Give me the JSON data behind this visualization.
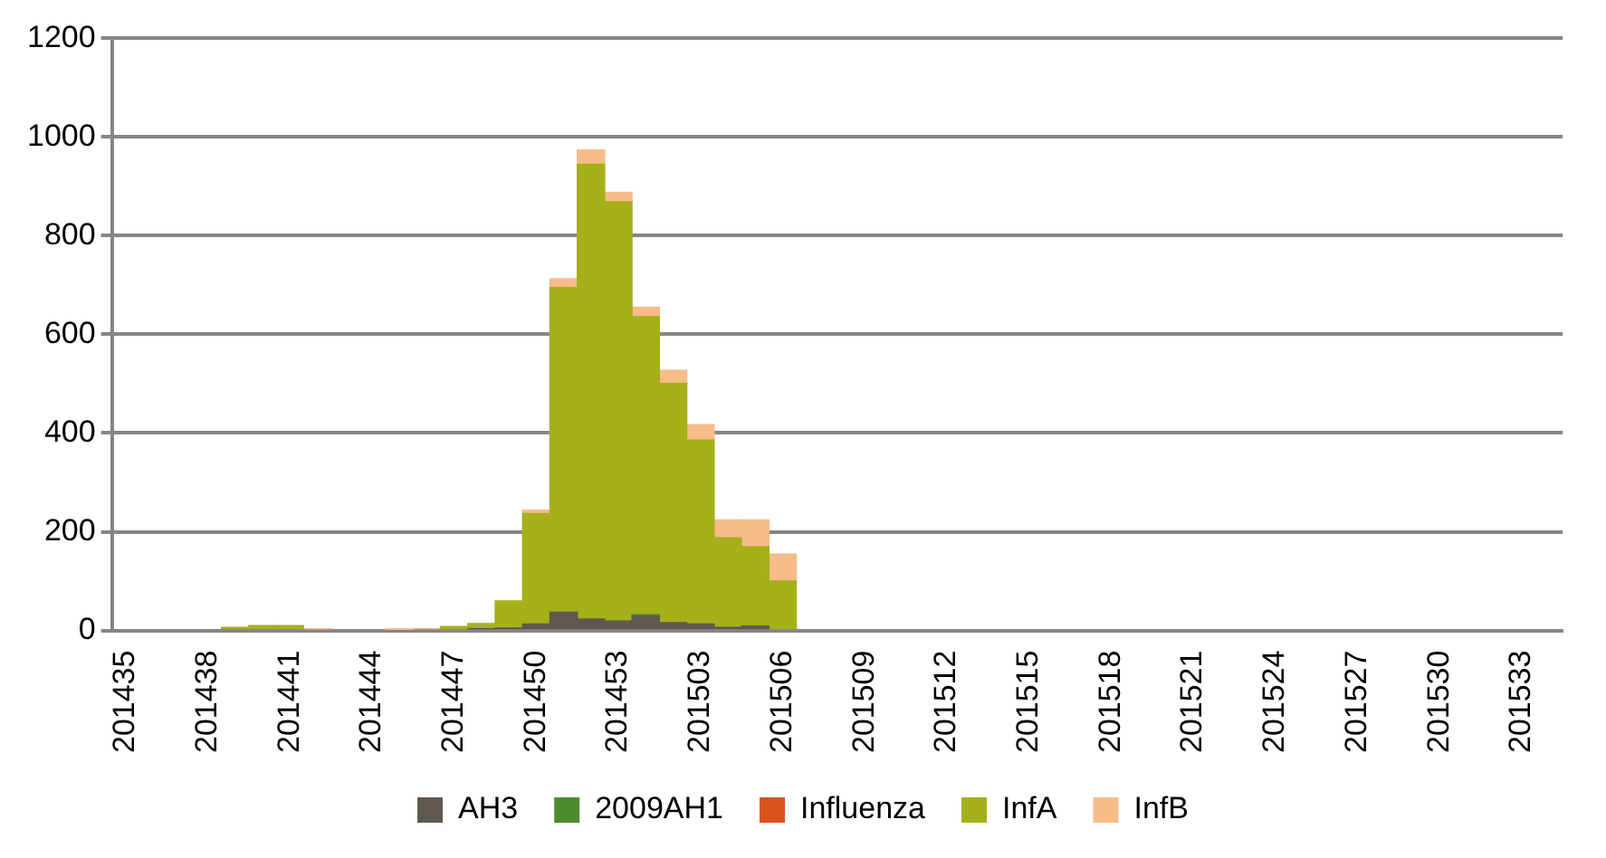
{
  "chart_data": {
    "type": "bar",
    "stacked": true,
    "grid": "y",
    "legend": "bottom",
    "categories": [
      "201435",
      null,
      null,
      "201438",
      null,
      null,
      "201441",
      null,
      null,
      "201444",
      null,
      null,
      "201447",
      null,
      null,
      "201450",
      null,
      null,
      "201453",
      null,
      null,
      "201503",
      null,
      null,
      "201506",
      null,
      null,
      "201509",
      null,
      null,
      "201512",
      null,
      null,
      "201515",
      null,
      null,
      "201518",
      null,
      null,
      "201521",
      null,
      null,
      "201524",
      null,
      null,
      "201527",
      null,
      null,
      "201530",
      null,
      null,
      "201533",
      null
    ],
    "ylim": [
      0,
      1200
    ],
    "yticks": [
      0,
      200,
      400,
      600,
      800,
      1000,
      1200
    ],
    "series": [
      {
        "name": "AH3",
        "color": "#5f5850",
        "values": [
          null,
          null,
          null,
          null,
          null,
          null,
          null,
          null,
          null,
          null,
          null,
          null,
          null,
          3,
          5,
          13,
          37,
          23,
          19,
          29,
          16,
          13,
          6,
          9,
          null,
          null,
          null,
          null,
          null,
          null,
          null,
          null,
          null,
          null,
          null,
          null,
          null,
          null,
          null,
          null,
          null,
          null,
          null,
          null,
          null,
          null,
          null,
          null,
          null,
          null,
          null,
          null,
          null
        ]
      },
      {
        "name": "2009AH1",
        "color": "#4e8b2e",
        "values": [
          null,
          null,
          null,
          null,
          null,
          null,
          null,
          null,
          null,
          null,
          null,
          null,
          null,
          null,
          null,
          null,
          null,
          null,
          null,
          3,
          null,
          null,
          null,
          null,
          null,
          null,
          null,
          null,
          null,
          null,
          null,
          null,
          null,
          null,
          null,
          null,
          null,
          null,
          null,
          null,
          null,
          null,
          null,
          null,
          null,
          null,
          null,
          null,
          null,
          null,
          null,
          null,
          null
        ]
      },
      {
        "name": "Influenza",
        "color": "#d9531e",
        "values": [
          null,
          null,
          null,
          null,
          null,
          null,
          null,
          null,
          null,
          null,
          null,
          null,
          null,
          null,
          null,
          null,
          null,
          null,
          null,
          null,
          null,
          null,
          null,
          null,
          null,
          null,
          null,
          null,
          null,
          null,
          null,
          null,
          null,
          null,
          null,
          null,
          null,
          null,
          null,
          null,
          null,
          null,
          null,
          null,
          null,
          null,
          null,
          null,
          null,
          null,
          null,
          null,
          null
        ]
      },
      {
        "name": "InfA",
        "color": "#a5b01a",
        "values": [
          null,
          null,
          null,
          null,
          6,
          10,
          10,
          null,
          null,
          null,
          null,
          null,
          8,
          11,
          55,
          224,
          658,
          922,
          850,
          604,
          485,
          373,
          182,
          161,
          100,
          null,
          null,
          null,
          null,
          null,
          null,
          null,
          null,
          null,
          null,
          null,
          null,
          null,
          null,
          null,
          null,
          null,
          null,
          null,
          null,
          null,
          null,
          null,
          null,
          null,
          null,
          null,
          null
        ]
      },
      {
        "name": "InfB",
        "color": "#f8bc8a",
        "values": [
          null,
          null,
          null,
          null,
          null,
          null,
          null,
          3,
          null,
          null,
          2,
          4,
          null,
          null,
          null,
          7,
          18,
          29,
          19,
          19,
          26,
          31,
          36,
          54,
          55,
          null,
          null,
          null,
          null,
          null,
          null,
          null,
          null,
          null,
          null,
          null,
          null,
          null,
          null,
          null,
          null,
          null,
          null,
          null,
          null,
          null,
          null,
          null,
          null,
          null,
          null,
          null,
          null
        ]
      }
    ]
  }
}
